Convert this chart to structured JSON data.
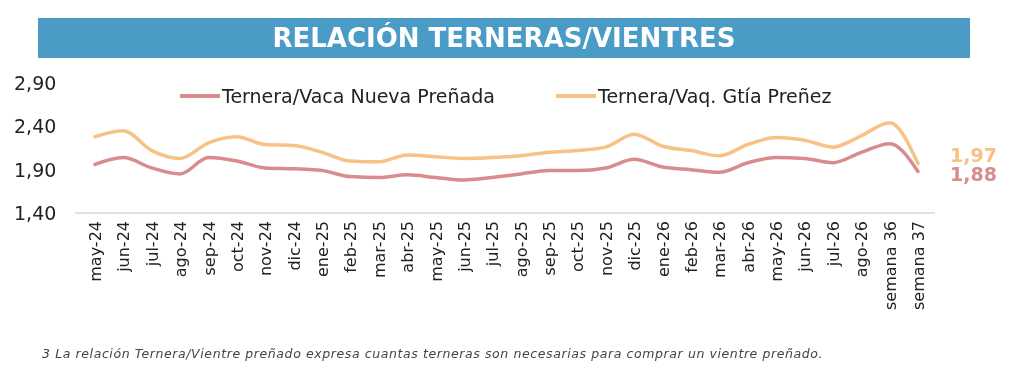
{
  "chart_data": {
    "type": "line",
    "title": "RELACIÓN TERNERAS/VIENTRES",
    "categories": [
      "may-24",
      "jun-24",
      "jul-24",
      "ago-24",
      "sep-24",
      "oct-24",
      "nov-24",
      "dic-24",
      "ene-25",
      "feb-25",
      "mar-25",
      "abr-25",
      "may-25",
      "jun-25",
      "jul-25",
      "ago-25",
      "sep-25",
      "oct-25",
      "nov-25",
      "dic-25",
      "ene-26",
      "feb-26",
      "mar-26",
      "abr-26",
      "may-26",
      "jun-26",
      "jul-26",
      "ago-26",
      "semana 36",
      "semana 37"
    ],
    "series": [
      {
        "name": "Ternera/Vaca Nueva Preñada",
        "color": "#d98c8e",
        "values": [
          1.96,
          2.04,
          1.92,
          1.85,
          2.04,
          2.0,
          1.92,
          1.91,
          1.89,
          1.82,
          1.81,
          1.84,
          1.81,
          1.78,
          1.81,
          1.85,
          1.89,
          1.89,
          1.92,
          2.02,
          1.93,
          1.9,
          1.87,
          1.98,
          2.04,
          2.03,
          1.98,
          2.1,
          2.2,
          1.88
        ],
        "value_labels": [
          null,
          null,
          null,
          null,
          null,
          null,
          null,
          null,
          null,
          null,
          null,
          null,
          null,
          null,
          null,
          null,
          null,
          null,
          null,
          null,
          null,
          null,
          null,
          null,
          null,
          null,
          null,
          null,
          null,
          "1,88"
        ]
      },
      {
        "name": "Ternera/Vaq. Gtía Preñez",
        "color": "#f8c185",
        "values": [
          2.28,
          2.35,
          2.12,
          2.03,
          2.21,
          2.28,
          2.19,
          2.18,
          2.1,
          2.0,
          1.99,
          2.07,
          2.05,
          2.03,
          2.04,
          2.06,
          2.1,
          2.12,
          2.16,
          2.31,
          2.17,
          2.12,
          2.06,
          2.19,
          2.27,
          2.24,
          2.16,
          2.29,
          2.44,
          1.97
        ],
        "value_labels": [
          null,
          null,
          null,
          null,
          null,
          null,
          null,
          null,
          null,
          null,
          null,
          null,
          null,
          null,
          null,
          null,
          null,
          null,
          null,
          null,
          null,
          null,
          null,
          null,
          null,
          null,
          null,
          null,
          null,
          "1,97"
        ]
      }
    ],
    "ylim": [
      1.4,
      2.9
    ],
    "yticks": [
      {
        "value": 1.4,
        "label": "1,40"
      },
      {
        "value": 1.9,
        "label": "1,90"
      },
      {
        "value": 2.4,
        "label": "2,40"
      },
      {
        "value": 2.9,
        "label": "2,90"
      }
    ],
    "legend": "top",
    "grid": false,
    "marker": "none",
    "line_style": "solid",
    "annotations": [
      "3 La relación Ternera/Vientre preñado expresa cuantas terneras son necesarias para comprar un vientre preñado."
    ]
  }
}
